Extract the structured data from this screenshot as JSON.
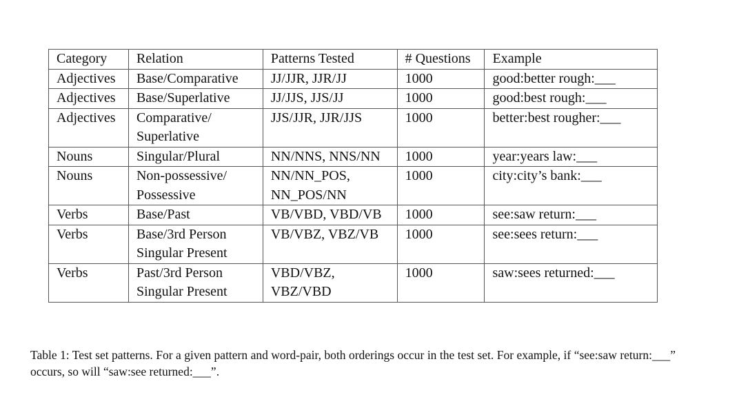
{
  "table": {
    "headers": [
      "Category",
      "Relation",
      "Patterns Tested",
      "# Questions",
      "Example"
    ],
    "rows": [
      {
        "category": "Adjectives",
        "relation": "Base/Comparative",
        "patterns": "JJ/JJR, JJR/JJ",
        "questions": "1000",
        "example": "good:better rough:___"
      },
      {
        "category": "Adjectives",
        "relation": "Base/Superlative",
        "patterns": "JJ/JJS, JJS/JJ",
        "questions": "1000",
        "example": "good:best rough:___"
      },
      {
        "category": "Adjectives",
        "relation": "Comparative/ Superlative",
        "patterns": "JJS/JJR, JJR/JJS",
        "questions": "1000",
        "example": "better:best rougher:___"
      },
      {
        "category": "Nouns",
        "relation": "Singular/Plural",
        "patterns": "NN/NNS, NNS/NN",
        "questions": "1000",
        "example": "year:years law:___"
      },
      {
        "category": "Nouns",
        "relation": "Non-possessive/ Possessive",
        "patterns": "NN/NN_POS, NN_POS/NN",
        "questions": "1000",
        "example": "city:city’s bank:___"
      },
      {
        "category": "Verbs",
        "relation": "Base/Past",
        "patterns": "VB/VBD, VBD/VB",
        "questions": "1000",
        "example": "see:saw return:___"
      },
      {
        "category": "Verbs",
        "relation": "Base/3rd Person Singular Present",
        "patterns": "VB/VBZ, VBZ/VB",
        "questions": "1000",
        "example": "see:sees return:___"
      },
      {
        "category": "Verbs",
        "relation": "Past/3rd Person Singular Present",
        "patterns": "VBD/VBZ, VBZ/VBD",
        "questions": "1000",
        "example": "saw:sees returned:___"
      }
    ]
  },
  "caption": "Table 1: Test set patterns. For a given pattern and word-pair, both orderings occur in the test set. For example, if “see:saw return:___” occurs, so will “saw:see returned:___”."
}
